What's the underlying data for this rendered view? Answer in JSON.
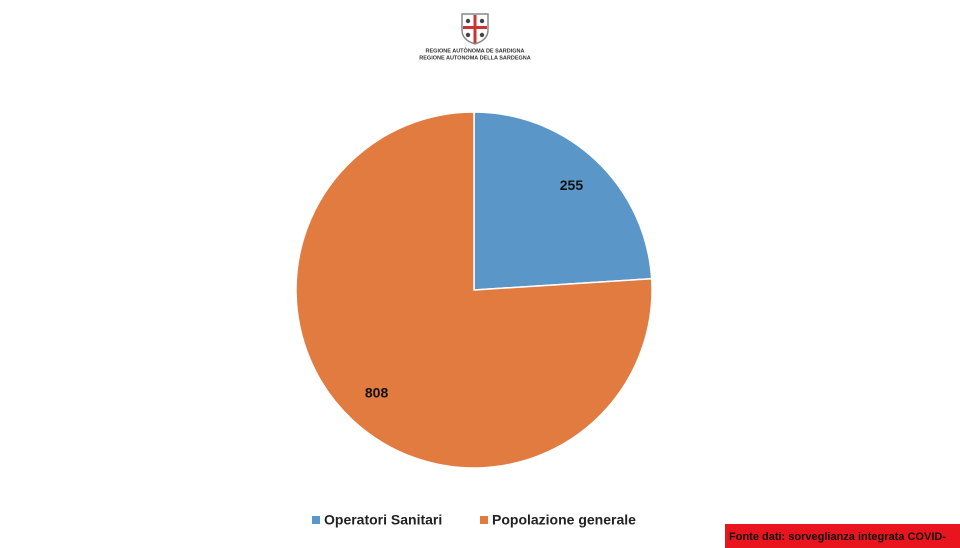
{
  "header": {
    "line1": "REGIONE AUTÒNOMA DE SARDIGNA",
    "line2": "REGIONE AUTONOMA DELLA SARDEGNA"
  },
  "chart_data": {
    "type": "pie",
    "categories": [
      "Operatori Sanitari",
      "Popolazione generale"
    ],
    "values": [
      255,
      808
    ],
    "colors": [
      "#5b96c8",
      "#e27b40"
    ],
    "source": "Fonte dati: sorveglianza integrata COVID-"
  }
}
